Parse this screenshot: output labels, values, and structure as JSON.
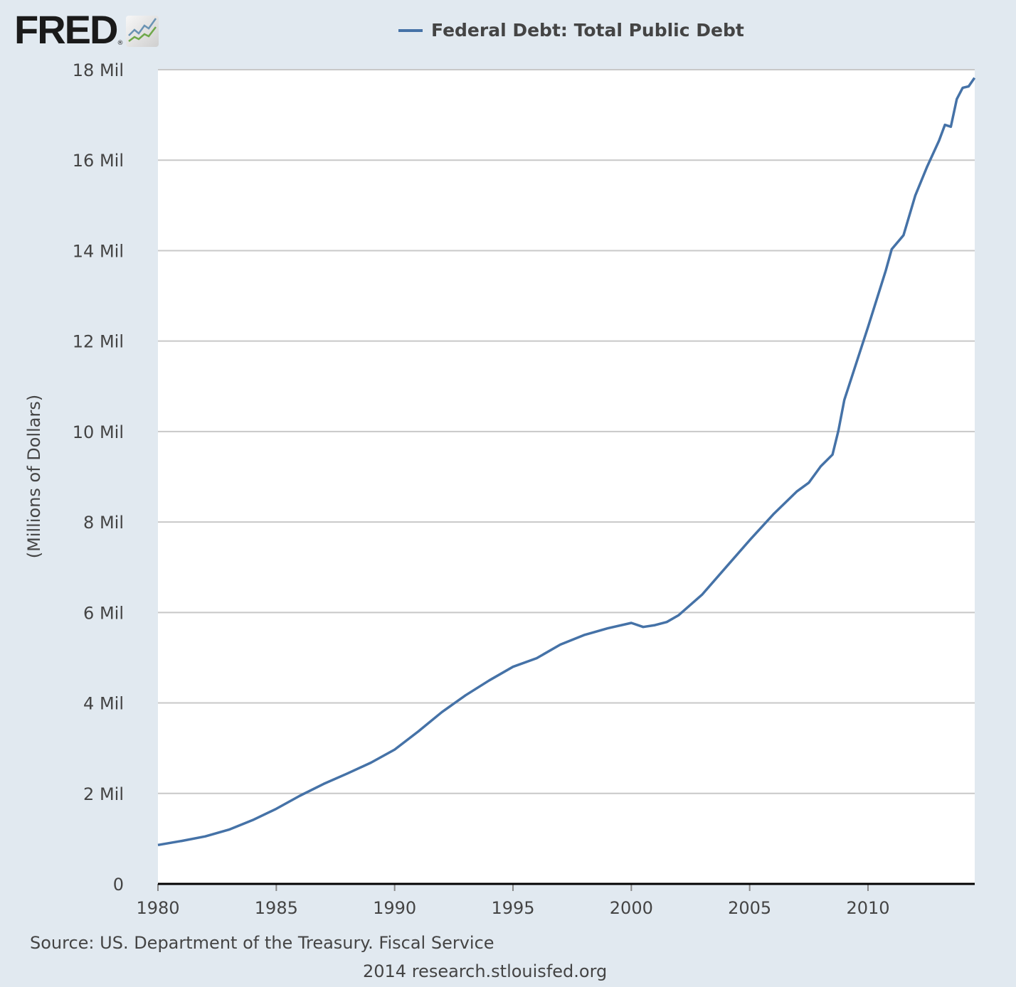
{
  "logo": {
    "text": "FRED",
    "reg": "®",
    "icon": "line-chart-icon"
  },
  "colors": {
    "series": "#4572a7",
    "background": "#e1e9f0",
    "grid": "#c8c8c8"
  },
  "footer": {
    "source": "Source: US. Department of the Treasury. Fiscal Service",
    "credit": "2014 research.stlouisfed.org"
  },
  "chart_data": {
    "type": "line",
    "title": "",
    "legend": [
      "Federal Debt: Total Public Debt"
    ],
    "legend_placement": "top-center",
    "xlabel": "",
    "ylabel": "(Millions of Dollars)",
    "xlim": [
      1980,
      2014.5
    ],
    "ylim": [
      0,
      18
    ],
    "grid": true,
    "x_ticks": [
      "1980",
      "1985",
      "1990",
      "1995",
      "2000",
      "2005",
      "2010"
    ],
    "y_ticks": [
      "0",
      "2 Mil",
      "4 Mil",
      "6 Mil",
      "8 Mil",
      "10 Mil",
      "12 Mil",
      "14 Mil",
      "16 Mil",
      "18 Mil"
    ],
    "series": [
      {
        "name": "Federal Debt: Total Public Debt",
        "x": [
          1980,
          1981,
          1982,
          1983,
          1984,
          1985,
          1986,
          1987,
          1988,
          1989,
          1990,
          1991,
          1992,
          1993,
          1994,
          1995,
          1996,
          1997,
          1998,
          1999,
          2000,
          2000.5,
          2001,
          2001.5,
          2002,
          2003,
          2004,
          2005,
          2006,
          2007,
          2007.5,
          2008,
          2008.5,
          2008.75,
          2009,
          2010,
          2010.75,
          2011,
          2011.5,
          2012,
          2012.5,
          2013,
          2013.25,
          2013.5,
          2013.75,
          2014,
          2014.25,
          2014.5
        ],
        "values": [
          0.86,
          0.95,
          1.05,
          1.2,
          1.41,
          1.66,
          1.95,
          2.21,
          2.44,
          2.68,
          2.97,
          3.37,
          3.8,
          4.17,
          4.5,
          4.8,
          4.99,
          5.29,
          5.5,
          5.65,
          5.77,
          5.68,
          5.72,
          5.79,
          5.94,
          6.4,
          7.0,
          7.6,
          8.17,
          8.68,
          8.87,
          9.23,
          9.49,
          10.02,
          10.7,
          12.31,
          13.56,
          14.03,
          14.34,
          15.22,
          15.86,
          16.43,
          16.78,
          16.74,
          17.35,
          17.6,
          17.63,
          17.82
        ]
      }
    ]
  }
}
